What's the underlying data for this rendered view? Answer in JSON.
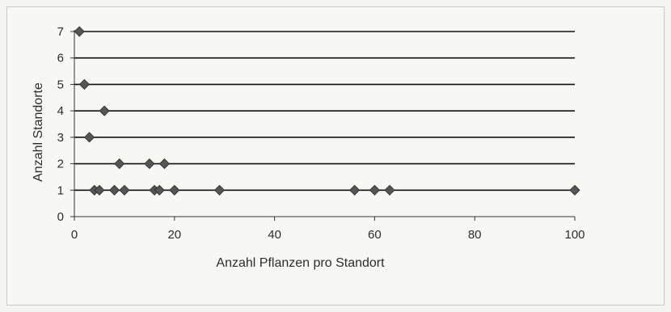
{
  "chart_data": {
    "type": "scatter",
    "title": "",
    "xlabel": "Anzahl Pflanzen pro Standort",
    "ylabel": "Anzahl Standorte",
    "xlim": [
      0,
      100
    ],
    "ylim": [
      0,
      7
    ],
    "x_ticks": [
      0,
      20,
      40,
      60,
      80,
      100
    ],
    "y_ticks": [
      0,
      1,
      2,
      3,
      4,
      5,
      6,
      7
    ],
    "grid": "horizontal",
    "legend": "none",
    "marker": "diamond",
    "marker_color": "#555555",
    "gridline_color": "#111111",
    "points": [
      {
        "x": 1,
        "y": 7
      },
      {
        "x": 2,
        "y": 5
      },
      {
        "x": 3,
        "y": 3
      },
      {
        "x": 4,
        "y": 1
      },
      {
        "x": 5,
        "y": 1
      },
      {
        "x": 6,
        "y": 4
      },
      {
        "x": 8,
        "y": 1
      },
      {
        "x": 9,
        "y": 2
      },
      {
        "x": 10,
        "y": 1
      },
      {
        "x": 15,
        "y": 2
      },
      {
        "x": 16,
        "y": 1
      },
      {
        "x": 17,
        "y": 1
      },
      {
        "x": 18,
        "y": 2
      },
      {
        "x": 20,
        "y": 1
      },
      {
        "x": 29,
        "y": 1
      },
      {
        "x": 56,
        "y": 1
      },
      {
        "x": 60,
        "y": 1
      },
      {
        "x": 63,
        "y": 1
      },
      {
        "x": 100,
        "y": 1
      }
    ]
  }
}
